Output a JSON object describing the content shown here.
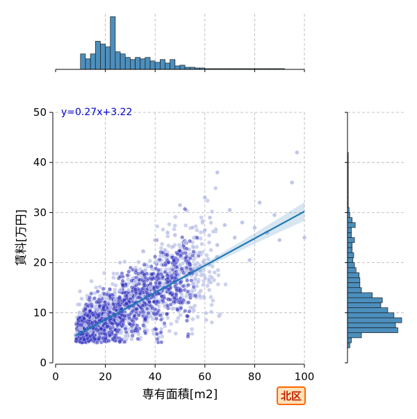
{
  "chart_data": {
    "type": "scatter",
    "variant": "jointplot",
    "xlabel": "専有面積[m2]",
    "ylabel": "賃料[万円]",
    "xlim": [
      0,
      100
    ],
    "ylim": [
      0,
      50
    ],
    "xticks": [
      0,
      20,
      40,
      60,
      80,
      100
    ],
    "yticks": [
      0,
      10,
      20,
      30,
      40,
      50
    ],
    "grid": true,
    "equation": "y=0.27x+3.22",
    "regression": {
      "slope": 0.27,
      "intercept": 3.22,
      "x_range": [
        8,
        100
      ]
    },
    "badge": "北区",
    "colors": {
      "points": "#2b2bbb",
      "points_light": "#b6bde6",
      "regression": "#1f77b4",
      "histogram": "#4c8fbd",
      "equation": "#0000cc",
      "grid": "#b0b0b0"
    },
    "sample_points": [
      [
        8,
        5.5
      ],
      [
        10,
        6.8
      ],
      [
        12,
        7.5
      ],
      [
        14,
        6.2
      ],
      [
        15,
        8.8
      ],
      [
        17,
        10.5
      ],
      [
        18,
        7.8
      ],
      [
        20,
        9.5
      ],
      [
        22,
        11.2
      ],
      [
        24,
        12.5
      ],
      [
        25,
        8.5
      ],
      [
        26,
        14.5
      ],
      [
        28,
        10.8
      ],
      [
        30,
        13.5
      ],
      [
        32,
        16.2
      ],
      [
        34,
        12.0
      ],
      [
        36,
        18.5
      ],
      [
        38,
        15.0
      ],
      [
        40,
        20.0
      ],
      [
        42,
        14.5
      ],
      [
        44,
        22.5
      ],
      [
        46,
        18.0
      ],
      [
        48,
        25.5
      ],
      [
        50,
        19.5
      ],
      [
        52,
        24.0
      ],
      [
        55,
        27.0
      ],
      [
        58,
        22.0
      ],
      [
        60,
        26.5
      ],
      [
        62,
        29.0
      ],
      [
        65,
        23.5
      ],
      [
        68,
        27.5
      ],
      [
        70,
        30.5
      ],
      [
        72,
        25.0
      ],
      [
        75,
        28.0
      ],
      [
        78,
        20.5
      ],
      [
        80,
        27.0
      ],
      [
        82,
        32.0
      ],
      [
        85,
        26.0
      ],
      [
        88,
        29.5
      ],
      [
        90,
        24.5
      ],
      [
        95,
        36.0
      ],
      [
        97,
        42.0
      ],
      [
        100,
        25.0
      ],
      [
        65,
        38.0
      ],
      [
        60,
        33.0
      ],
      [
        50,
        31.5
      ],
      [
        45,
        26.0
      ],
      [
        40,
        24.5
      ]
    ],
    "x_histogram": {
      "bin_width": 2,
      "bin_start": 10,
      "counts": [
        22,
        15,
        22,
        40,
        36,
        32,
        75,
        25,
        22,
        17,
        14,
        17,
        15,
        17,
        12,
        10,
        14,
        9,
        14,
        5,
        6,
        3,
        3,
        2,
        2,
        1,
        1,
        1,
        1,
        1,
        1,
        1,
        1,
        1,
        1,
        1,
        1,
        1,
        1,
        1,
        1,
        0,
        0,
        0,
        0
      ]
    },
    "y_histogram": {
      "bin_width": 1,
      "bin_start": 3,
      "counts": [
        3,
        5,
        18,
        65,
        62,
        70,
        60,
        52,
        43,
        45,
        32,
        18,
        16,
        16,
        15,
        11,
        9,
        7,
        8,
        6,
        6,
        9,
        5,
        5,
        10,
        6,
        3,
        2,
        1,
        1,
        1,
        1,
        1,
        1,
        1,
        1,
        1,
        1,
        1,
        0,
        0,
        0
      ]
    }
  }
}
